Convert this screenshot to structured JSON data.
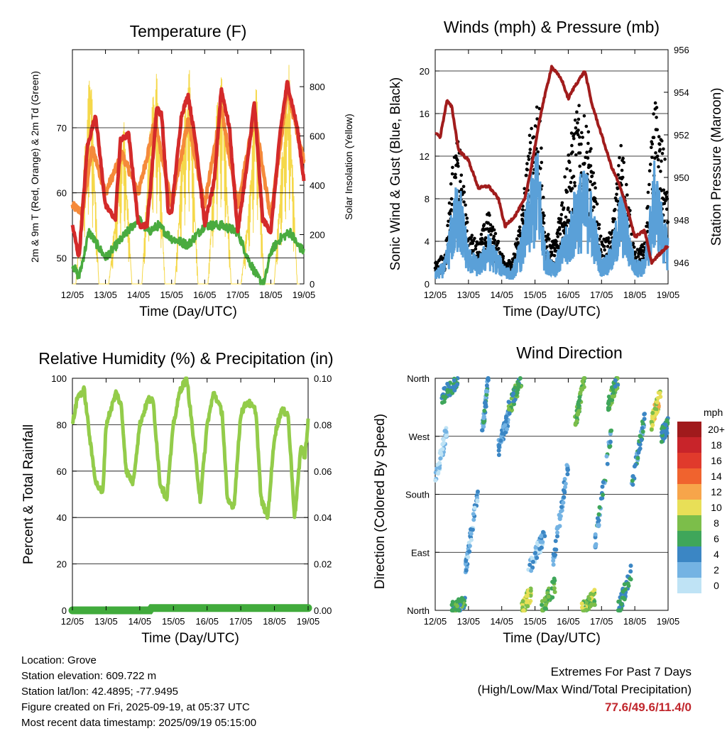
{
  "time_ticks": [
    "12/05",
    "13/05",
    "14/05",
    "15/05",
    "16/05",
    "17/05",
    "18/05",
    "19/05"
  ],
  "panels": {
    "temperature": {
      "title": "Temperature (F)",
      "xlabel": "Time (Day/UTC)",
      "ylabel_left": "2m & 9m T (Red, Orange) & 2m Td (Green)",
      "ylabel_right": "Solar Insolation (Yellow)",
      "yticks_left": [
        "50",
        "60",
        "70"
      ],
      "yticks_right": [
        "0",
        "200",
        "400",
        "600",
        "800"
      ]
    },
    "winds": {
      "title": "Winds (mph) & Pressure (mb)",
      "xlabel": "Time (Day/UTC)",
      "ylabel_left": "Sonic Wind & Gust (Blue, Black)",
      "ylabel_right": "Station Pressure (Maroon)",
      "yticks_left": [
        "0",
        "4",
        "8",
        "12",
        "16",
        "20"
      ],
      "yticks_right": [
        "946",
        "948",
        "950",
        "952",
        "954",
        "956"
      ]
    },
    "humidity": {
      "title": "Relative Humidity (%) & Precipitation (in)",
      "xlabel": "Time (Day/UTC)",
      "ylabel_left": "Percent & Total Rainfall",
      "yticks_left": [
        "0",
        "20",
        "40",
        "60",
        "80",
        "100"
      ],
      "yticks_right": [
        "0.00",
        "0.02",
        "0.04",
        "0.06",
        "0.08",
        "0.10"
      ]
    },
    "direction": {
      "title": "Wind Direction",
      "xlabel": "Time (Day/UTC)",
      "ylabel_left": "Direction (Colored By Speed)",
      "yticks_left": [
        "North",
        "East",
        "South",
        "West",
        "North"
      ],
      "colorbar_title": "mph",
      "colorbar_labels": [
        "20+",
        "18",
        "16",
        "14",
        "12",
        "10",
        "8",
        "6",
        "4",
        "2",
        "0"
      ],
      "colorbar_colors": [
        "#a01a1c",
        "#c8242a",
        "#e03a2c",
        "#f0632e",
        "#f7a54a",
        "#e8df57",
        "#7cbe4a",
        "#3fa65a",
        "#3b86c4",
        "#74b3e3",
        "#bfe3f5"
      ]
    }
  },
  "colors": {
    "temp_2m": "#d42a2a",
    "temp_9m": "#f58a3a",
    "dewpoint": "#4aab3f",
    "solar": "#f5d84a",
    "wind": "#5aa0d8",
    "gust": "#000000",
    "pressure": "#a11c1c",
    "rh": "#93cc4a",
    "precip": "#41ab3c"
  },
  "chart_data": [
    {
      "type": "line",
      "title": "Temperature (F)",
      "xlabel": "Time (Day/UTC)",
      "ylabel": "2m & 9m T (Red, Orange) & 2m Td (Green)",
      "y2label": "Solar Insolation (Yellow)",
      "x_range": [
        "12/05",
        "19/05"
      ],
      "ylim": [
        46,
        82
      ],
      "y2lim": [
        0,
        950
      ],
      "series": [
        {
          "name": "2m T",
          "x": [
            0,
            0.2,
            0.45,
            0.7,
            1.0,
            1.3,
            1.45,
            1.7,
            2.0,
            2.25,
            2.35,
            2.55,
            2.7,
            2.9,
            3.0,
            3.3,
            3.5,
            3.75,
            4.0,
            4.3,
            4.5,
            4.75,
            5.0,
            5.3,
            5.5,
            5.75,
            6.0,
            6.3,
            6.5,
            6.8,
            7.0
          ],
          "y": [
            55,
            50,
            67,
            72,
            58,
            56,
            68,
            69,
            55,
            55,
            60,
            73,
            72,
            57,
            57,
            72,
            75,
            67,
            55,
            62,
            76,
            70,
            54,
            65,
            74,
            56,
            54,
            70,
            77,
            70,
            62
          ]
        },
        {
          "name": "9m T",
          "x": [
            0,
            0.3,
            0.6,
            1.0,
            1.5,
            2.0,
            2.5,
            3.0,
            3.5,
            4.0,
            4.5,
            5.0,
            5.5,
            6.0,
            6.5,
            7.0
          ],
          "y": [
            58,
            57,
            67,
            60,
            66,
            60,
            71,
            58,
            71,
            58,
            73,
            58,
            72,
            56,
            76,
            65
          ]
        },
        {
          "name": "2m Td",
          "x": [
            0,
            0.2,
            0.5,
            1.0,
            1.5,
            2.0,
            2.3,
            2.6,
            3.0,
            3.5,
            4.0,
            4.5,
            5.0,
            5.3,
            5.6,
            5.8,
            6.0,
            6.3,
            6.6,
            6.8,
            7.0
          ],
          "y": [
            49,
            47,
            54,
            50,
            53,
            56,
            54,
            55,
            53,
            52,
            55,
            55,
            54,
            50,
            47,
            46,
            51,
            53,
            54,
            52,
            51
          ]
        },
        {
          "name": "Solar Insolation",
          "axis": "y2",
          "x": [
            0.1,
            0.35,
            0.55,
            0.8,
            1.1,
            1.35,
            1.55,
            1.8,
            2.1,
            2.35,
            2.55,
            2.8,
            3.1,
            3.35,
            3.55,
            3.8,
            4.1,
            4.35,
            4.55,
            4.8,
            5.1,
            5.35,
            5.55,
            5.8,
            6.1,
            6.35,
            6.55,
            6.8
          ],
          "y": [
            0,
            500,
            940,
            0,
            0,
            380,
            700,
            0,
            0,
            680,
            870,
            0,
            0,
            640,
            890,
            0,
            0,
            710,
            880,
            0,
            0,
            360,
            880,
            0,
            0,
            560,
            900,
            0
          ]
        }
      ]
    },
    {
      "type": "line",
      "title": "Winds (mph) & Pressure (mb)",
      "xlabel": "Time (Day/UTC)",
      "ylabel": "Sonic Wind & Gust (Blue, Black)",
      "y2label": "Station Pressure (Maroon)",
      "x_range": [
        "12/05",
        "19/05"
      ],
      "ylim": [
        0,
        22
      ],
      "y2lim": [
        945,
        956
      ],
      "series": [
        {
          "name": "Sonic Wind",
          "x": [
            0,
            0.3,
            0.5,
            0.7,
            1.0,
            1.3,
            1.6,
            2.0,
            2.3,
            2.6,
            2.9,
            3.1,
            3.3,
            3.6,
            4.0,
            4.3,
            4.6,
            5.0,
            5.3,
            5.6,
            6.0,
            6.3,
            6.6,
            6.9,
            7.0
          ],
          "y": [
            1,
            2,
            6,
            9,
            3,
            2,
            4,
            2,
            1,
            4,
            9,
            11,
            3,
            2,
            5,
            9,
            9,
            2,
            3,
            8,
            2,
            2,
            10,
            5,
            4
          ]
        },
        {
          "name": "Gust",
          "x": [
            0,
            0.3,
            0.5,
            0.7,
            1.0,
            1.3,
            1.6,
            2.0,
            2.3,
            2.6,
            2.9,
            3.1,
            3.3,
            3.6,
            4.0,
            4.3,
            4.6,
            5.0,
            5.3,
            5.6,
            6.0,
            6.3,
            6.6,
            6.9,
            7.0
          ],
          "y": [
            2,
            3,
            11,
            14,
            5,
            4,
            7,
            3,
            2,
            7,
            16,
            19,
            5,
            4,
            13,
            17,
            15,
            4,
            5,
            14,
            3,
            4,
            18,
            12,
            8
          ]
        },
        {
          "name": "Station Pressure",
          "axis": "y2",
          "x": [
            0,
            0.15,
            0.35,
            0.5,
            0.7,
            1.0,
            1.3,
            1.6,
            1.9,
            2.1,
            2.4,
            2.7,
            2.9,
            3.2,
            3.5,
            3.8,
            4.0,
            4.2,
            4.5,
            4.7,
            5.0,
            5.3,
            5.5,
            5.8,
            6.0,
            6.3,
            6.5,
            6.8,
            7.0
          ],
          "y": [
            952.1,
            951.9,
            953.6,
            953.3,
            951.3,
            950.8,
            949.5,
            949.6,
            949.0,
            947.7,
            948.2,
            949.0,
            950.6,
            953.2,
            955.2,
            954.6,
            953.7,
            954.3,
            955.0,
            953.5,
            952.0,
            950.5,
            949.8,
            948.4,
            947.2,
            947.5,
            946.0,
            946.5,
            946.8
          ]
        }
      ]
    },
    {
      "type": "line",
      "title": "Relative Humidity (%) & Precipitation (in)",
      "xlabel": "Time (Day/UTC)",
      "ylabel": "Percent & Total Rainfall",
      "x_range": [
        "12/05",
        "19/05"
      ],
      "ylim": [
        0,
        100
      ],
      "y2lim": [
        0.0,
        0.1
      ],
      "series": [
        {
          "name": "Relative Humidity",
          "x": [
            0,
            0.15,
            0.35,
            0.55,
            0.7,
            0.9,
            1.0,
            1.3,
            1.45,
            1.6,
            1.8,
            2.0,
            2.25,
            2.4,
            2.6,
            2.8,
            3.0,
            3.2,
            3.4,
            3.55,
            3.8,
            4.0,
            4.2,
            4.45,
            4.6,
            4.8,
            5.0,
            5.2,
            5.45,
            5.6,
            5.8,
            6.0,
            6.2,
            6.4,
            6.6,
            6.8,
            6.9,
            7.0
          ],
          "y": [
            80,
            92,
            95,
            70,
            55,
            50,
            80,
            94,
            88,
            60,
            55,
            80,
            91,
            90,
            55,
            48,
            80,
            95,
            100,
            80,
            47,
            80,
            94,
            85,
            47,
            45,
            85,
            90,
            86,
            48,
            40,
            75,
            86,
            85,
            40,
            72,
            65,
            82
          ]
        },
        {
          "name": "Total Precipitation",
          "axis": "y2",
          "x": [
            0,
            2.3,
            2.35,
            7.0
          ],
          "y": [
            0.0,
            0.0,
            0.001,
            0.001
          ]
        }
      ]
    },
    {
      "type": "scatter",
      "title": "Wind Direction",
      "xlabel": "Time (Day/UTC)",
      "ylabel": "Direction (Colored By Speed)",
      "x_range": [
        "12/05",
        "19/05"
      ],
      "yticks": [
        "North",
        "East",
        "South",
        "West",
        "North"
      ],
      "colorbar": {
        "title": "mph",
        "labels": [
          "20+",
          "18",
          "16",
          "14",
          "12",
          "10",
          "8",
          "6",
          "4",
          "2",
          "0"
        ]
      },
      "clusters": [
        {
          "x": [
            0.0,
            0.35
          ],
          "dir": [
            200,
            280
          ],
          "speed": 1
        },
        {
          "x": [
            0.2,
            0.7
          ],
          "dir": [
            330,
            360
          ],
          "speed": 5
        },
        {
          "x": [
            0.5,
            0.9
          ],
          "dir": [
            0,
            10
          ],
          "speed": 6
        },
        {
          "x": [
            0.9,
            1.3
          ],
          "dir": [
            60,
            190
          ],
          "speed": 2
        },
        {
          "x": [
            1.4,
            1.6
          ],
          "dir": [
            270,
            360
          ],
          "speed": 4
        },
        {
          "x": [
            1.9,
            2.2
          ],
          "dir": [
            250,
            300
          ],
          "speed": 3
        },
        {
          "x": [
            2.2,
            2.6
          ],
          "dir": [
            310,
            360
          ],
          "speed": 6
        },
        {
          "x": [
            2.6,
            2.9
          ],
          "dir": [
            0,
            30
          ],
          "speed": 9
        },
        {
          "x": [
            2.8,
            3.3
          ],
          "dir": [
            60,
            120
          ],
          "speed": 2
        },
        {
          "x": [
            3.2,
            3.6
          ],
          "dir": [
            0,
            40
          ],
          "speed": 7
        },
        {
          "x": [
            3.5,
            4.0
          ],
          "dir": [
            60,
            230
          ],
          "speed": 3
        },
        {
          "x": [
            4.2,
            4.5
          ],
          "dir": [
            290,
            360
          ],
          "speed": 7
        },
        {
          "x": [
            4.4,
            4.8
          ],
          "dir": [
            0,
            20
          ],
          "speed": 8
        },
        {
          "x": [
            4.8,
            5.3
          ],
          "dir": [
            100,
            280
          ],
          "speed": 4
        },
        {
          "x": [
            5.2,
            5.5
          ],
          "dir": [
            320,
            360
          ],
          "speed": 6
        },
        {
          "x": [
            5.5,
            5.9
          ],
          "dir": [
            0,
            60
          ],
          "speed": 5
        },
        {
          "x": [
            5.9,
            6.3
          ],
          "dir": [
            190,
            300
          ],
          "speed": 4
        },
        {
          "x": [
            6.5,
            6.8
          ],
          "dir": [
            290,
            340
          ],
          "speed": 10
        },
        {
          "x": [
            6.8,
            7.0
          ],
          "dir": [
            270,
            290
          ],
          "speed": 5
        }
      ]
    }
  ],
  "footer": {
    "location": "Location: Grove",
    "elevation": "Station elevation: 609.722 m",
    "latlon": "Station lat/lon: 42.4895; -77.9495",
    "created": "Figure created on Fri, 2025-09-19, at 05:37 UTC",
    "recent": "Most recent data timestamp: 2025/09/19 05:15:00"
  },
  "extremes": {
    "line1": "Extremes For Past 7 Days",
    "line2": "(High/Low/Max Wind/Total Precipitation)",
    "values": "77.6/49.6/11.4/0"
  }
}
